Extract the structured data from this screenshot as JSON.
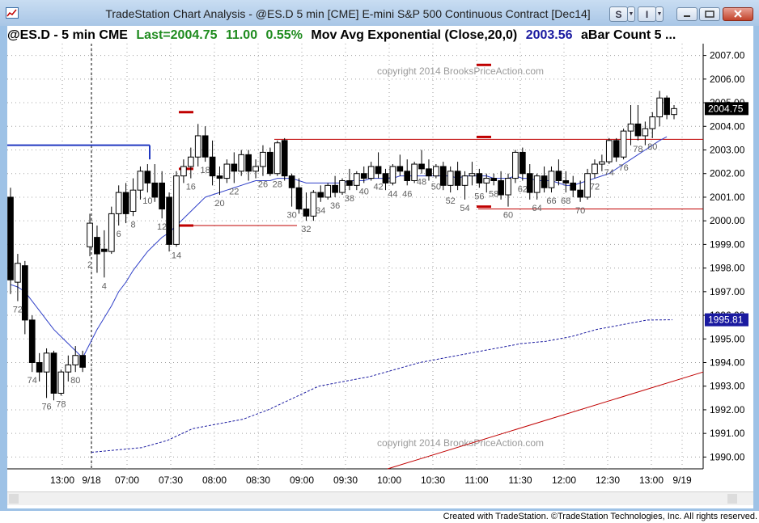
{
  "window": {
    "title": "TradeStation Chart Analysis - @ES.D 5 min [CME] E-mini S&P 500 Continuous Contract [Dec14]",
    "btn_s": "S",
    "btn_i": "I"
  },
  "infobar": {
    "symbol": "@ES.D - 5 min  CME",
    "last": "Last=2004.75",
    "change": "11.00",
    "pct": "0.55%",
    "study": "Mov Avg Exponential (Close,20,0)",
    "study_value": "2003.56",
    "bar_count": "aBar Count 5  ..."
  },
  "watermark": "copyright 2014 BrooksPriceAction.com",
  "footer": "Created with TradeStation. ©TradeStation Technologies, Inc. All rights reserved.",
  "colors": {
    "last": "#1e8b1e",
    "study": "#1a1aa0",
    "ema": "#3040c8",
    "support_resistance": "#c00000",
    "price_marker_bg": "#000000",
    "dotted_marker_bg": "#1a1aa0"
  },
  "chart_data": {
    "type": "candlestick",
    "y_ticks": [
      "2007.00",
      "2006.00",
      "2005.00",
      "2004.00",
      "2003.00",
      "2002.00",
      "2001.00",
      "2000.00",
      "1999.00",
      "1998.00",
      "1997.00",
      "1996.00",
      "1995.00",
      "1994.00",
      "1993.00",
      "1992.00",
      "1991.00",
      "1990.00"
    ],
    "ylim": [
      1989.5,
      2007.5
    ],
    "x_ticks": [
      "13:00",
      "9/18",
      "07:00",
      "07:30",
      "08:00",
      "08:30",
      "09:00",
      "09:30",
      "10:00",
      "10:30",
      "11:00",
      "11:30",
      "12:00",
      "12:30",
      "13:00",
      "9/19"
    ],
    "last_price": "2004.75",
    "dotted_series_value": "1995.81",
    "bar_labels": [
      {
        "bar": 1,
        "text": "72"
      },
      {
        "bar": 3,
        "text": "74"
      },
      {
        "bar": 5,
        "text": "76"
      },
      {
        "bar": 7,
        "text": "78"
      },
      {
        "bar": 9,
        "text": "80"
      },
      {
        "bar": 11,
        "text": "2"
      },
      {
        "bar": 13,
        "text": "4"
      },
      {
        "bar": 15,
        "text": "6"
      },
      {
        "bar": 17,
        "text": "8"
      },
      {
        "bar": 19,
        "text": "10"
      },
      {
        "bar": 21,
        "text": "12"
      },
      {
        "bar": 23,
        "text": "14"
      },
      {
        "bar": 25,
        "text": "16"
      },
      {
        "bar": 27,
        "text": "18"
      },
      {
        "bar": 29,
        "text": "20"
      },
      {
        "bar": 31,
        "text": "22"
      },
      {
        "bar": 35,
        "text": "26"
      },
      {
        "bar": 37,
        "text": "28"
      },
      {
        "bar": 39,
        "text": "30"
      },
      {
        "bar": 41,
        "text": "32"
      },
      {
        "bar": 43,
        "text": "34"
      },
      {
        "bar": 45,
        "text": "36"
      },
      {
        "bar": 47,
        "text": "38"
      },
      {
        "bar": 49,
        "text": "40"
      },
      {
        "bar": 51,
        "text": "42"
      },
      {
        "bar": 53,
        "text": "44"
      },
      {
        "bar": 55,
        "text": "46"
      },
      {
        "bar": 57,
        "text": "48"
      },
      {
        "bar": 59,
        "text": "50"
      },
      {
        "bar": 61,
        "text": "52"
      },
      {
        "bar": 63,
        "text": "54"
      },
      {
        "bar": 65,
        "text": "56"
      },
      {
        "bar": 67,
        "text": "58"
      },
      {
        "bar": 69,
        "text": "60"
      },
      {
        "bar": 71,
        "text": "62"
      },
      {
        "bar": 73,
        "text": "64"
      },
      {
        "bar": 75,
        "text": "66"
      },
      {
        "bar": 77,
        "text": "68"
      },
      {
        "bar": 79,
        "text": "70"
      },
      {
        "bar": 81,
        "text": "72"
      },
      {
        "bar": 83,
        "text": "74"
      },
      {
        "bar": 85,
        "text": "76"
      },
      {
        "bar": 87,
        "text": "78"
      },
      {
        "bar": 89,
        "text": "80"
      }
    ],
    "candles": [
      {
        "o": 2001.0,
        "h": 2001.4,
        "l": 1996.9,
        "c": 1997.5
      },
      {
        "o": 1997.4,
        "h": 1998.6,
        "l": 1996.6,
        "c": 1998.2
      },
      {
        "o": 1998.1,
        "h": 1998.3,
        "l": 1995.2,
        "c": 1995.8
      },
      {
        "o": 1995.8,
        "h": 1996.0,
        "l": 1993.6,
        "c": 1994.0
      },
      {
        "o": 1994.0,
        "h": 1994.4,
        "l": 1993.2,
        "c": 1993.6
      },
      {
        "o": 1993.6,
        "h": 1994.6,
        "l": 1992.5,
        "c": 1994.4
      },
      {
        "o": 1994.4,
        "h": 1994.5,
        "l": 1992.4,
        "c": 1992.7
      },
      {
        "o": 1992.7,
        "h": 1993.7,
        "l": 1992.6,
        "c": 1993.6
      },
      {
        "o": 1993.6,
        "h": 1994.3,
        "l": 1993.2,
        "c": 1993.9
      },
      {
        "o": 1993.9,
        "h": 1994.7,
        "l": 1993.6,
        "c": 1994.3
      },
      {
        "o": 1994.3,
        "h": 1994.5,
        "l": 1993.6,
        "c": 1993.8
      },
      {
        "o": 1998.9,
        "h": 2000.3,
        "l": 1998.5,
        "c": 1999.9
      },
      {
        "o": 1999.3,
        "h": 1999.8,
        "l": 1997.8,
        "c": 1998.6
      },
      {
        "o": 1998.8,
        "h": 1999.6,
        "l": 1997.6,
        "c": 1998.7
      },
      {
        "o": 1998.7,
        "h": 2000.6,
        "l": 1998.6,
        "c": 2000.3
      },
      {
        "o": 2000.3,
        "h": 2001.5,
        "l": 1999.8,
        "c": 2001.2
      },
      {
        "o": 2001.2,
        "h": 2001.6,
        "l": 1999.9,
        "c": 2000.3
      },
      {
        "o": 2000.4,
        "h": 2001.8,
        "l": 2000.2,
        "c": 2001.3
      },
      {
        "o": 2001.3,
        "h": 2002.3,
        "l": 2000.9,
        "c": 2002.1
      },
      {
        "o": 2002.1,
        "h": 2002.4,
        "l": 2001.2,
        "c": 2001.6
      },
      {
        "o": 2001.6,
        "h": 2002.4,
        "l": 2000.8,
        "c": 2001.0
      },
      {
        "o": 2001.6,
        "h": 2002.1,
        "l": 2000.1,
        "c": 2000.5
      },
      {
        "o": 2001.0,
        "h": 2001.2,
        "l": 1998.7,
        "c": 1999.0
      },
      {
        "o": 1999.0,
        "h": 2002.1,
        "l": 1998.9,
        "c": 2001.9
      },
      {
        "o": 2001.9,
        "h": 2002.6,
        "l": 2001.6,
        "c": 2002.3
      },
      {
        "o": 2002.3,
        "h": 2003.1,
        "l": 2001.8,
        "c": 2002.7
      },
      {
        "o": 2002.7,
        "h": 2004.1,
        "l": 2002.3,
        "c": 2003.6
      },
      {
        "o": 2003.6,
        "h": 2004.0,
        "l": 2002.5,
        "c": 2002.7
      },
      {
        "o": 2002.7,
        "h": 2003.4,
        "l": 2001.5,
        "c": 2001.9
      },
      {
        "o": 2001.9,
        "h": 2002.3,
        "l": 2001.1,
        "c": 2001.8
      },
      {
        "o": 2001.8,
        "h": 2002.6,
        "l": 2001.6,
        "c": 2002.4
      },
      {
        "o": 2002.4,
        "h": 2002.9,
        "l": 2001.6,
        "c": 2002.1
      },
      {
        "o": 2002.1,
        "h": 2003.0,
        "l": 2001.9,
        "c": 2002.8
      },
      {
        "o": 2002.8,
        "h": 2003.0,
        "l": 2001.7,
        "c": 2002.1
      },
      {
        "o": 2002.1,
        "h": 2002.6,
        "l": 2001.8,
        "c": 2002.3
      },
      {
        "o": 2002.3,
        "h": 2003.2,
        "l": 2001.9,
        "c": 2002.9
      },
      {
        "o": 2002.9,
        "h": 2003.1,
        "l": 2001.9,
        "c": 2002.0
      },
      {
        "o": 2002.0,
        "h": 2003.4,
        "l": 2001.9,
        "c": 2003.3
      },
      {
        "o": 2003.4,
        "h": 2003.5,
        "l": 2001.7,
        "c": 2001.9
      },
      {
        "o": 2001.9,
        "h": 2002.0,
        "l": 2000.6,
        "c": 2001.4
      },
      {
        "o": 2001.4,
        "h": 2001.8,
        "l": 2000.3,
        "c": 2000.5
      },
      {
        "o": 2000.5,
        "h": 2001.2,
        "l": 2000.0,
        "c": 2000.2
      },
      {
        "o": 2000.2,
        "h": 2001.3,
        "l": 2000.0,
        "c": 2001.2
      },
      {
        "o": 2001.2,
        "h": 2001.5,
        "l": 2000.8,
        "c": 2001.0
      },
      {
        "o": 2001.0,
        "h": 2001.6,
        "l": 2000.9,
        "c": 2001.5
      },
      {
        "o": 2001.5,
        "h": 2001.9,
        "l": 2001.0,
        "c": 2001.2
      },
      {
        "o": 2001.2,
        "h": 2001.8,
        "l": 2001.1,
        "c": 2001.7
      },
      {
        "o": 2001.7,
        "h": 2002.2,
        "l": 2001.3,
        "c": 2001.5
      },
      {
        "o": 2001.5,
        "h": 2002.1,
        "l": 2001.3,
        "c": 2002.0
      },
      {
        "o": 2002.0,
        "h": 2002.3,
        "l": 2001.6,
        "c": 2001.8
      },
      {
        "o": 2001.8,
        "h": 2002.5,
        "l": 2001.7,
        "c": 2002.3
      },
      {
        "o": 2002.3,
        "h": 2002.9,
        "l": 2001.8,
        "c": 2002.0
      },
      {
        "o": 2002.0,
        "h": 2002.2,
        "l": 2001.3,
        "c": 2001.6
      },
      {
        "o": 2001.6,
        "h": 2002.4,
        "l": 2001.5,
        "c": 2002.3
      },
      {
        "o": 2002.3,
        "h": 2002.8,
        "l": 2001.9,
        "c": 2002.1
      },
      {
        "o": 2002.1,
        "h": 2002.6,
        "l": 2001.5,
        "c": 2001.7
      },
      {
        "o": 2001.7,
        "h": 2002.5,
        "l": 2001.6,
        "c": 2002.4
      },
      {
        "o": 2002.4,
        "h": 2003.0,
        "l": 2002.0,
        "c": 2002.2
      },
      {
        "o": 2002.2,
        "h": 2002.6,
        "l": 2001.7,
        "c": 2001.9
      },
      {
        "o": 2001.9,
        "h": 2002.4,
        "l": 2001.8,
        "c": 2002.3
      },
      {
        "o": 2002.3,
        "h": 2002.5,
        "l": 2001.3,
        "c": 2001.5
      },
      {
        "o": 2001.5,
        "h": 2002.3,
        "l": 2001.2,
        "c": 2002.1
      },
      {
        "o": 2002.1,
        "h": 2002.5,
        "l": 2001.3,
        "c": 2001.5
      },
      {
        "o": 2001.5,
        "h": 2002.1,
        "l": 2000.9,
        "c": 2001.9
      },
      {
        "o": 2001.9,
        "h": 2002.5,
        "l": 2001.5,
        "c": 2002.0
      },
      {
        "o": 2002.0,
        "h": 2002.2,
        "l": 2001.4,
        "c": 2001.6
      },
      {
        "o": 2001.6,
        "h": 2002.0,
        "l": 2001.2,
        "c": 2001.8
      },
      {
        "o": 2001.8,
        "h": 2002.0,
        "l": 2001.5,
        "c": 2001.7
      },
      {
        "o": 2001.7,
        "h": 2002.1,
        "l": 2000.9,
        "c": 2001.1
      },
      {
        "o": 2001.1,
        "h": 2002.0,
        "l": 2000.6,
        "c": 2001.8
      },
      {
        "o": 2001.8,
        "h": 2003.0,
        "l": 2001.6,
        "c": 2002.9
      },
      {
        "o": 2002.9,
        "h": 2003.1,
        "l": 2001.7,
        "c": 2002.0
      },
      {
        "o": 2002.0,
        "h": 2002.4,
        "l": 2000.9,
        "c": 2001.2
      },
      {
        "o": 2001.2,
        "h": 2002.0,
        "l": 2000.9,
        "c": 2001.9
      },
      {
        "o": 2001.9,
        "h": 2002.3,
        "l": 2001.2,
        "c": 2001.4
      },
      {
        "o": 2001.4,
        "h": 2002.3,
        "l": 2001.2,
        "c": 2002.1
      },
      {
        "o": 2002.1,
        "h": 2002.6,
        "l": 2001.5,
        "c": 2001.7
      },
      {
        "o": 2001.7,
        "h": 2002.1,
        "l": 2001.2,
        "c": 2001.6
      },
      {
        "o": 2001.6,
        "h": 2001.9,
        "l": 2001.0,
        "c": 2001.3
      },
      {
        "o": 2001.3,
        "h": 2001.7,
        "l": 2000.8,
        "c": 2001.0
      },
      {
        "o": 2001.0,
        "h": 2002.2,
        "l": 2000.9,
        "c": 2002.0
      },
      {
        "o": 2002.0,
        "h": 2002.6,
        "l": 2001.8,
        "c": 2002.4
      },
      {
        "o": 2002.4,
        "h": 2002.8,
        "l": 2002.1,
        "c": 2002.5
      },
      {
        "o": 2002.5,
        "h": 2003.5,
        "l": 2002.4,
        "c": 2003.4
      },
      {
        "o": 2003.4,
        "h": 2003.5,
        "l": 2002.5,
        "c": 2002.7
      },
      {
        "o": 2002.7,
        "h": 2003.9,
        "l": 2002.6,
        "c": 2003.8
      },
      {
        "o": 2003.8,
        "h": 2004.9,
        "l": 2003.2,
        "c": 2004.1
      },
      {
        "o": 2004.1,
        "h": 2004.9,
        "l": 2003.4,
        "c": 2003.6
      },
      {
        "o": 2003.6,
        "h": 2004.2,
        "l": 2003.2,
        "c": 2003.9
      },
      {
        "o": 2003.9,
        "h": 2004.6,
        "l": 2003.5,
        "c": 2004.4
      },
      {
        "o": 2004.4,
        "h": 2005.5,
        "l": 2004.0,
        "c": 2005.2
      },
      {
        "o": 2005.2,
        "h": 2005.3,
        "l": 2004.3,
        "c": 2004.5
      },
      {
        "o": 2004.5,
        "h": 2004.9,
        "l": 2004.3,
        "c": 2004.75
      }
    ],
    "ema": [
      1997.3,
      1997.2,
      1997.0,
      1996.6,
      1996.2,
      1995.8,
      1995.4,
      1995.1,
      1994.8,
      1994.5,
      1994.2,
      1994.8,
      1995.4,
      1995.9,
      1996.4,
      1997.0,
      1997.4,
      1997.9,
      1998.3,
      1998.7,
      1999.0,
      1999.3,
      1999.5,
      1999.8,
      2000.1,
      2000.4,
      2000.7,
      2001.0,
      2001.1,
      2001.2,
      2001.3,
      2001.4,
      2001.5,
      2001.6,
      2001.7,
      2001.7,
      2001.7,
      2001.8,
      2001.8,
      2001.8,
      2001.7,
      2001.6,
      2001.6,
      2001.6,
      2001.6,
      2001.6,
      2001.6,
      2001.7,
      2001.7,
      2001.7,
      2001.8,
      2001.8,
      2001.8,
      2001.8,
      2001.9,
      2001.9,
      2001.9,
      2001.9,
      2001.9,
      2001.9,
      2001.9,
      2001.9,
      2001.8,
      2001.9,
      2001.9,
      2001.9,
      2001.9,
      2001.8,
      2001.8,
      2001.8,
      2001.9,
      2001.8,
      2001.8,
      2001.7,
      2001.7,
      2001.7,
      2001.6,
      2001.5,
      2001.5,
      2001.6,
      2001.7,
      2001.8,
      2001.9,
      2002.0,
      2002.2,
      2002.4,
      2002.6,
      2002.8,
      2003.0,
      2003.2,
      2003.4,
      2003.56
    ],
    "dotted_series": [
      1990.2,
      1990.3,
      1990.4,
      1990.7,
      1991.2,
      1991.4,
      1991.6,
      1992.0,
      1992.5,
      1993.0,
      1993.2,
      1993.4,
      1993.7,
      1994.0,
      1994.2,
      1994.4,
      1994.6,
      1994.8,
      1994.9,
      1995.1,
      1995.4,
      1995.6,
      1995.8,
      1995.81
    ]
  }
}
